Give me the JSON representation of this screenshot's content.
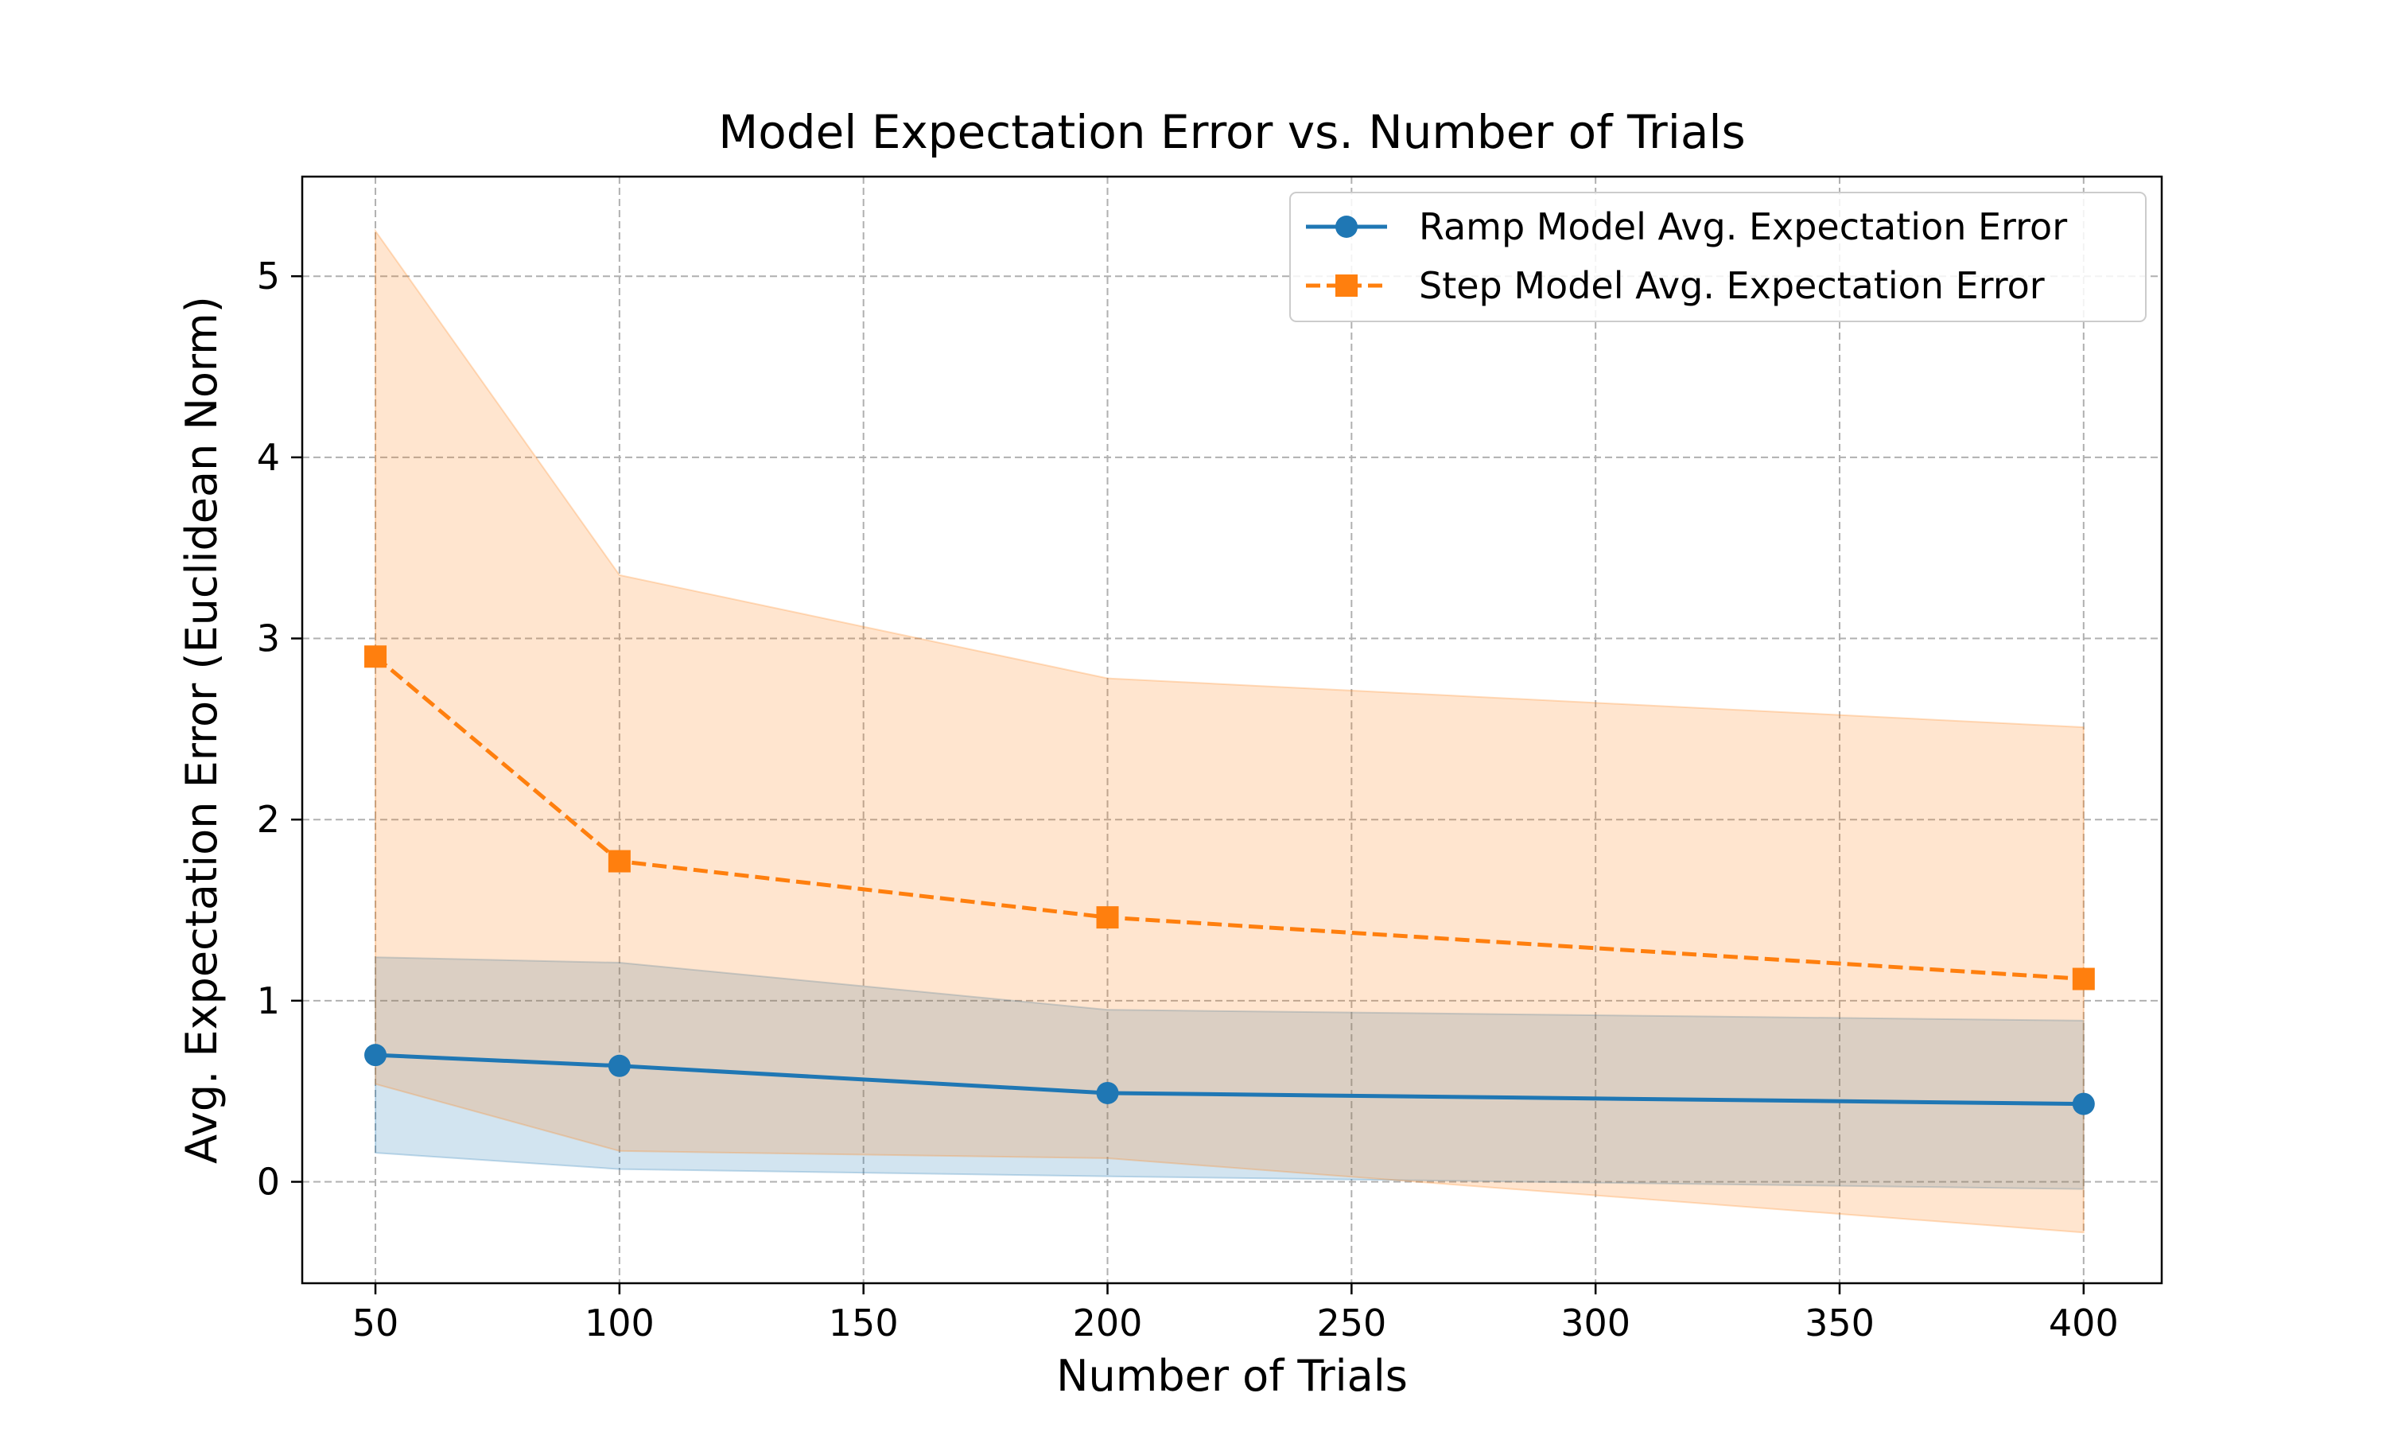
{
  "chart_data": {
    "type": "line",
    "title": "Model Expectation Error vs. Number of Trials",
    "xlabel": "Number of Trials",
    "ylabel": "Avg. Expectation Error (Euclidean Norm)",
    "xlim": [
      35,
      416
    ],
    "ylim": [
      -0.56,
      5.55
    ],
    "xticks": [
      50,
      100,
      150,
      200,
      250,
      300,
      350,
      400
    ],
    "yticks": [
      0,
      1,
      2,
      3,
      4,
      5
    ],
    "grid": true,
    "legend_position": "top-right",
    "x": [
      50,
      100,
      200,
      400
    ],
    "series": [
      {
        "name": "Ramp Model Avg. Expectation Error",
        "color": "#1f77b4",
        "marker": "circle",
        "linestyle": "solid",
        "values": [
          0.7,
          0.64,
          0.49,
          0.43
        ],
        "band_lower": [
          0.16,
          0.07,
          0.03,
          -0.04
        ],
        "band_upper": [
          1.24,
          1.21,
          0.95,
          0.89
        ]
      },
      {
        "name": "Step Model Avg. Expectation Error",
        "color": "#ff7f0e",
        "marker": "square",
        "linestyle": "dashed",
        "values": [
          2.9,
          1.77,
          1.46,
          1.12
        ],
        "band_lower": [
          0.54,
          0.17,
          0.13,
          -0.28
        ],
        "band_upper": [
          5.25,
          3.35,
          2.78,
          2.51
        ]
      }
    ]
  }
}
